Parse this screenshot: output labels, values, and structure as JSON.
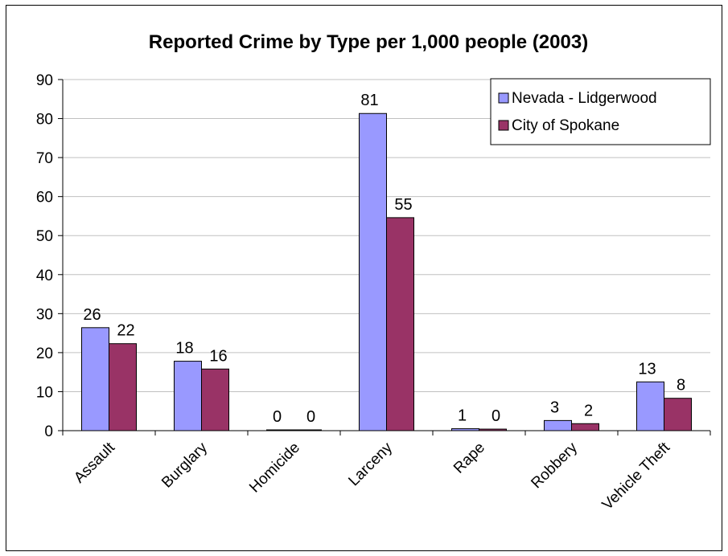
{
  "chart_data": {
    "type": "bar",
    "title": "Reported Crime by Type per 1,000 people (2003)",
    "xlabel": "",
    "ylabel": "",
    "categories": [
      "Assault",
      "Burglary",
      "Homicide",
      "Larceny",
      "Rape",
      "Robbery",
      "Vehicle Theft"
    ],
    "series": [
      {
        "name": "Nevada - Lidgerwood",
        "color": "#9999ff",
        "values": [
          26.4,
          17.8,
          0.1,
          81.3,
          0.5,
          2.6,
          12.5
        ],
        "labels": [
          "26",
          "18",
          "0",
          "81",
          "1",
          "3",
          "13"
        ]
      },
      {
        "name": "City of Spokane",
        "color": "#993366",
        "values": [
          22.3,
          15.8,
          0.05,
          54.6,
          0.4,
          1.8,
          8.3
        ],
        "labels": [
          "22",
          "16",
          "0",
          "55",
          "0",
          "2",
          "8"
        ]
      }
    ],
    "ylim": [
      0,
      90
    ],
    "yticks": [
      "0",
      "10",
      "20",
      "30",
      "40",
      "50",
      "60",
      "70",
      "80",
      "90"
    ],
    "grid": true,
    "legend": "top-right"
  }
}
